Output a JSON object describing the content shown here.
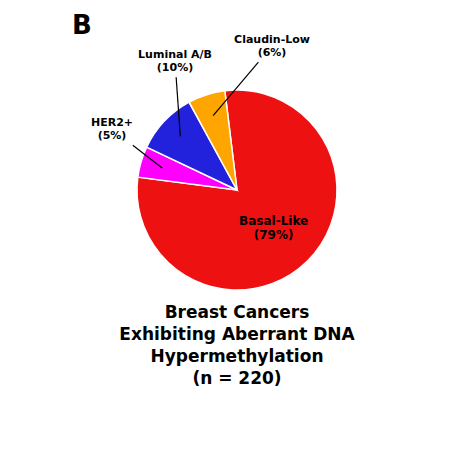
{
  "chart_data": {
    "type": "pie",
    "title": "Breast Cancers\nExhibiting Aberrant DNA\nHypermethylation",
    "subtitle": "(n = 220)",
    "categories": [
      "Basal-Like",
      "HER2+",
      "Luminal A/B",
      "Claudin-Low"
    ],
    "values": [
      79,
      5,
      10,
      6
    ],
    "value_labels": [
      "(79%)",
      "(5%)",
      "(10%)",
      "(6%)"
    ],
    "colors": [
      "#EE1111",
      "#FF00FF",
      "#2222DD",
      "#FFA500"
    ],
    "data_labels": true,
    "annotations": [
      "B"
    ]
  }
}
